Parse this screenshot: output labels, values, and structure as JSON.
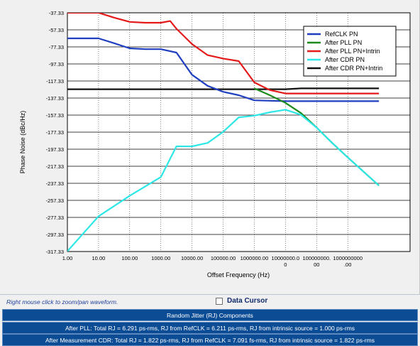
{
  "chart_data": {
    "type": "line",
    "xlabel": "Offset Frequency (Hz)",
    "ylabel": "Phase Noise (dBc/Hz)",
    "x_scale": "log",
    "xlim": [
      1,
      100000000000
    ],
    "ylim": [
      -317.33,
      -37.33
    ],
    "y_ticks": [
      "-37.33",
      "-57.33",
      "-77.33",
      "-97.33",
      "-117.33",
      "-137.33",
      "-157.33",
      "-177.33",
      "-197.33",
      "-217.33",
      "-237.33",
      "-257.33",
      "-277.33",
      "-297.33",
      "-317.33"
    ],
    "y_tick_values": [
      -37.33,
      -57.33,
      -77.33,
      -97.33,
      -117.33,
      -137.33,
      -157.33,
      -177.33,
      -197.33,
      -217.33,
      -237.33,
      -257.33,
      -277.33,
      -297.33,
      -317.33
    ],
    "x_ticks": [
      {
        "value": 1,
        "lines": [
          "1.00"
        ]
      },
      {
        "value": 10,
        "lines": [
          "10.00"
        ]
      },
      {
        "value": 100,
        "lines": [
          "100.00"
        ]
      },
      {
        "value": 1000,
        "lines": [
          "1000.00"
        ]
      },
      {
        "value": 10000,
        "lines": [
          "10000.00"
        ]
      },
      {
        "value": 100000,
        "lines": [
          "100000.00"
        ]
      },
      {
        "value": 1000000,
        "lines": [
          "1000000.00"
        ]
      },
      {
        "value": 10000000,
        "lines": [
          "10000000.0",
          "0"
        ]
      },
      {
        "value": 100000000,
        "lines": [
          "100000000.",
          "00"
        ]
      },
      {
        "value": 1000000000,
        "lines": [
          "1000000000",
          ".00"
        ]
      }
    ],
    "grid": true,
    "legend_position": "top-right",
    "series": [
      {
        "name": "RefCLK PN",
        "color": "#1f3fc0",
        "x": [
          1,
          10,
          31.6,
          100,
          316,
          1000,
          3160,
          10000,
          31600,
          100000,
          316000,
          1000000,
          3160000,
          10000000,
          100000000,
          1000000000,
          10000000000
        ],
        "y": [
          -67.3,
          -67.3,
          -73,
          -79,
          -80,
          -80,
          -84,
          -110,
          -123,
          -130,
          -134,
          -140,
          -140.5,
          -141,
          -141,
          -141,
          -141
        ]
      },
      {
        "name": "After PLL PN",
        "color": "#1a8a1a",
        "x": [
          1000000,
          3160000,
          10000000,
          31600000,
          100000000,
          316000000,
          1000000000,
          10000000000
        ],
        "y": [
          -126,
          -134,
          -143,
          -155,
          -172,
          -190,
          -207,
          -240
        ]
      },
      {
        "name": "After PLL PN+Intrin",
        "color": "#e41a1a",
        "x": [
          1,
          10,
          31.6,
          100,
          316,
          1000,
          2000,
          3160,
          10000,
          31600,
          100000,
          316000,
          1000000,
          3160000,
          10000000,
          100000000,
          1000000000,
          10000000000
        ],
        "y": [
          -37.3,
          -37.3,
          -43,
          -48,
          -49,
          -49,
          -47,
          -56,
          -74,
          -87,
          -91,
          -94,
          -119,
          -128,
          -132,
          -132,
          -132,
          -132
        ]
      },
      {
        "name": "After CDR PN",
        "color": "#2de7e7",
        "x": [
          1,
          10,
          100,
          1000,
          3160,
          10000,
          31600,
          100000,
          316000,
          1000000,
          3160000,
          10000000,
          31600000,
          100000000,
          316000000,
          1000000000,
          10000000000
        ],
        "y": [
          -317,
          -276,
          -252,
          -230,
          -194,
          -194,
          -190,
          -177,
          -160,
          -158,
          -154,
          -151,
          -157,
          -172,
          -190,
          -207,
          -240
        ]
      },
      {
        "name": "After CDR PN+Intrin",
        "color": "#111111",
        "x": [
          1,
          1000000,
          3160000,
          10000000,
          31600000,
          100000000,
          10000000000
        ],
        "y": [
          -127,
          -127,
          -127,
          -127,
          -126,
          -126,
          -126
        ]
      }
    ]
  },
  "status": {
    "hint": "Right mouse click to zoom/pan waveform.",
    "data_cursor_label": "Data Cursor"
  },
  "rj": {
    "header": "Random Jitter (RJ) Components",
    "after_pll": "After PLL: Total RJ = 6.291 ps-rms, RJ from RefCLK = 6.211 ps-rms, RJ from intrinsic source = 1.000 ps-rms",
    "after_cdr": "After Measurement CDR: Total RJ = 1.822 ps-rms, RJ from RefCLK = 7.091 fs-rms, RJ from intrinsic source = 1.822 ps-rms"
  }
}
